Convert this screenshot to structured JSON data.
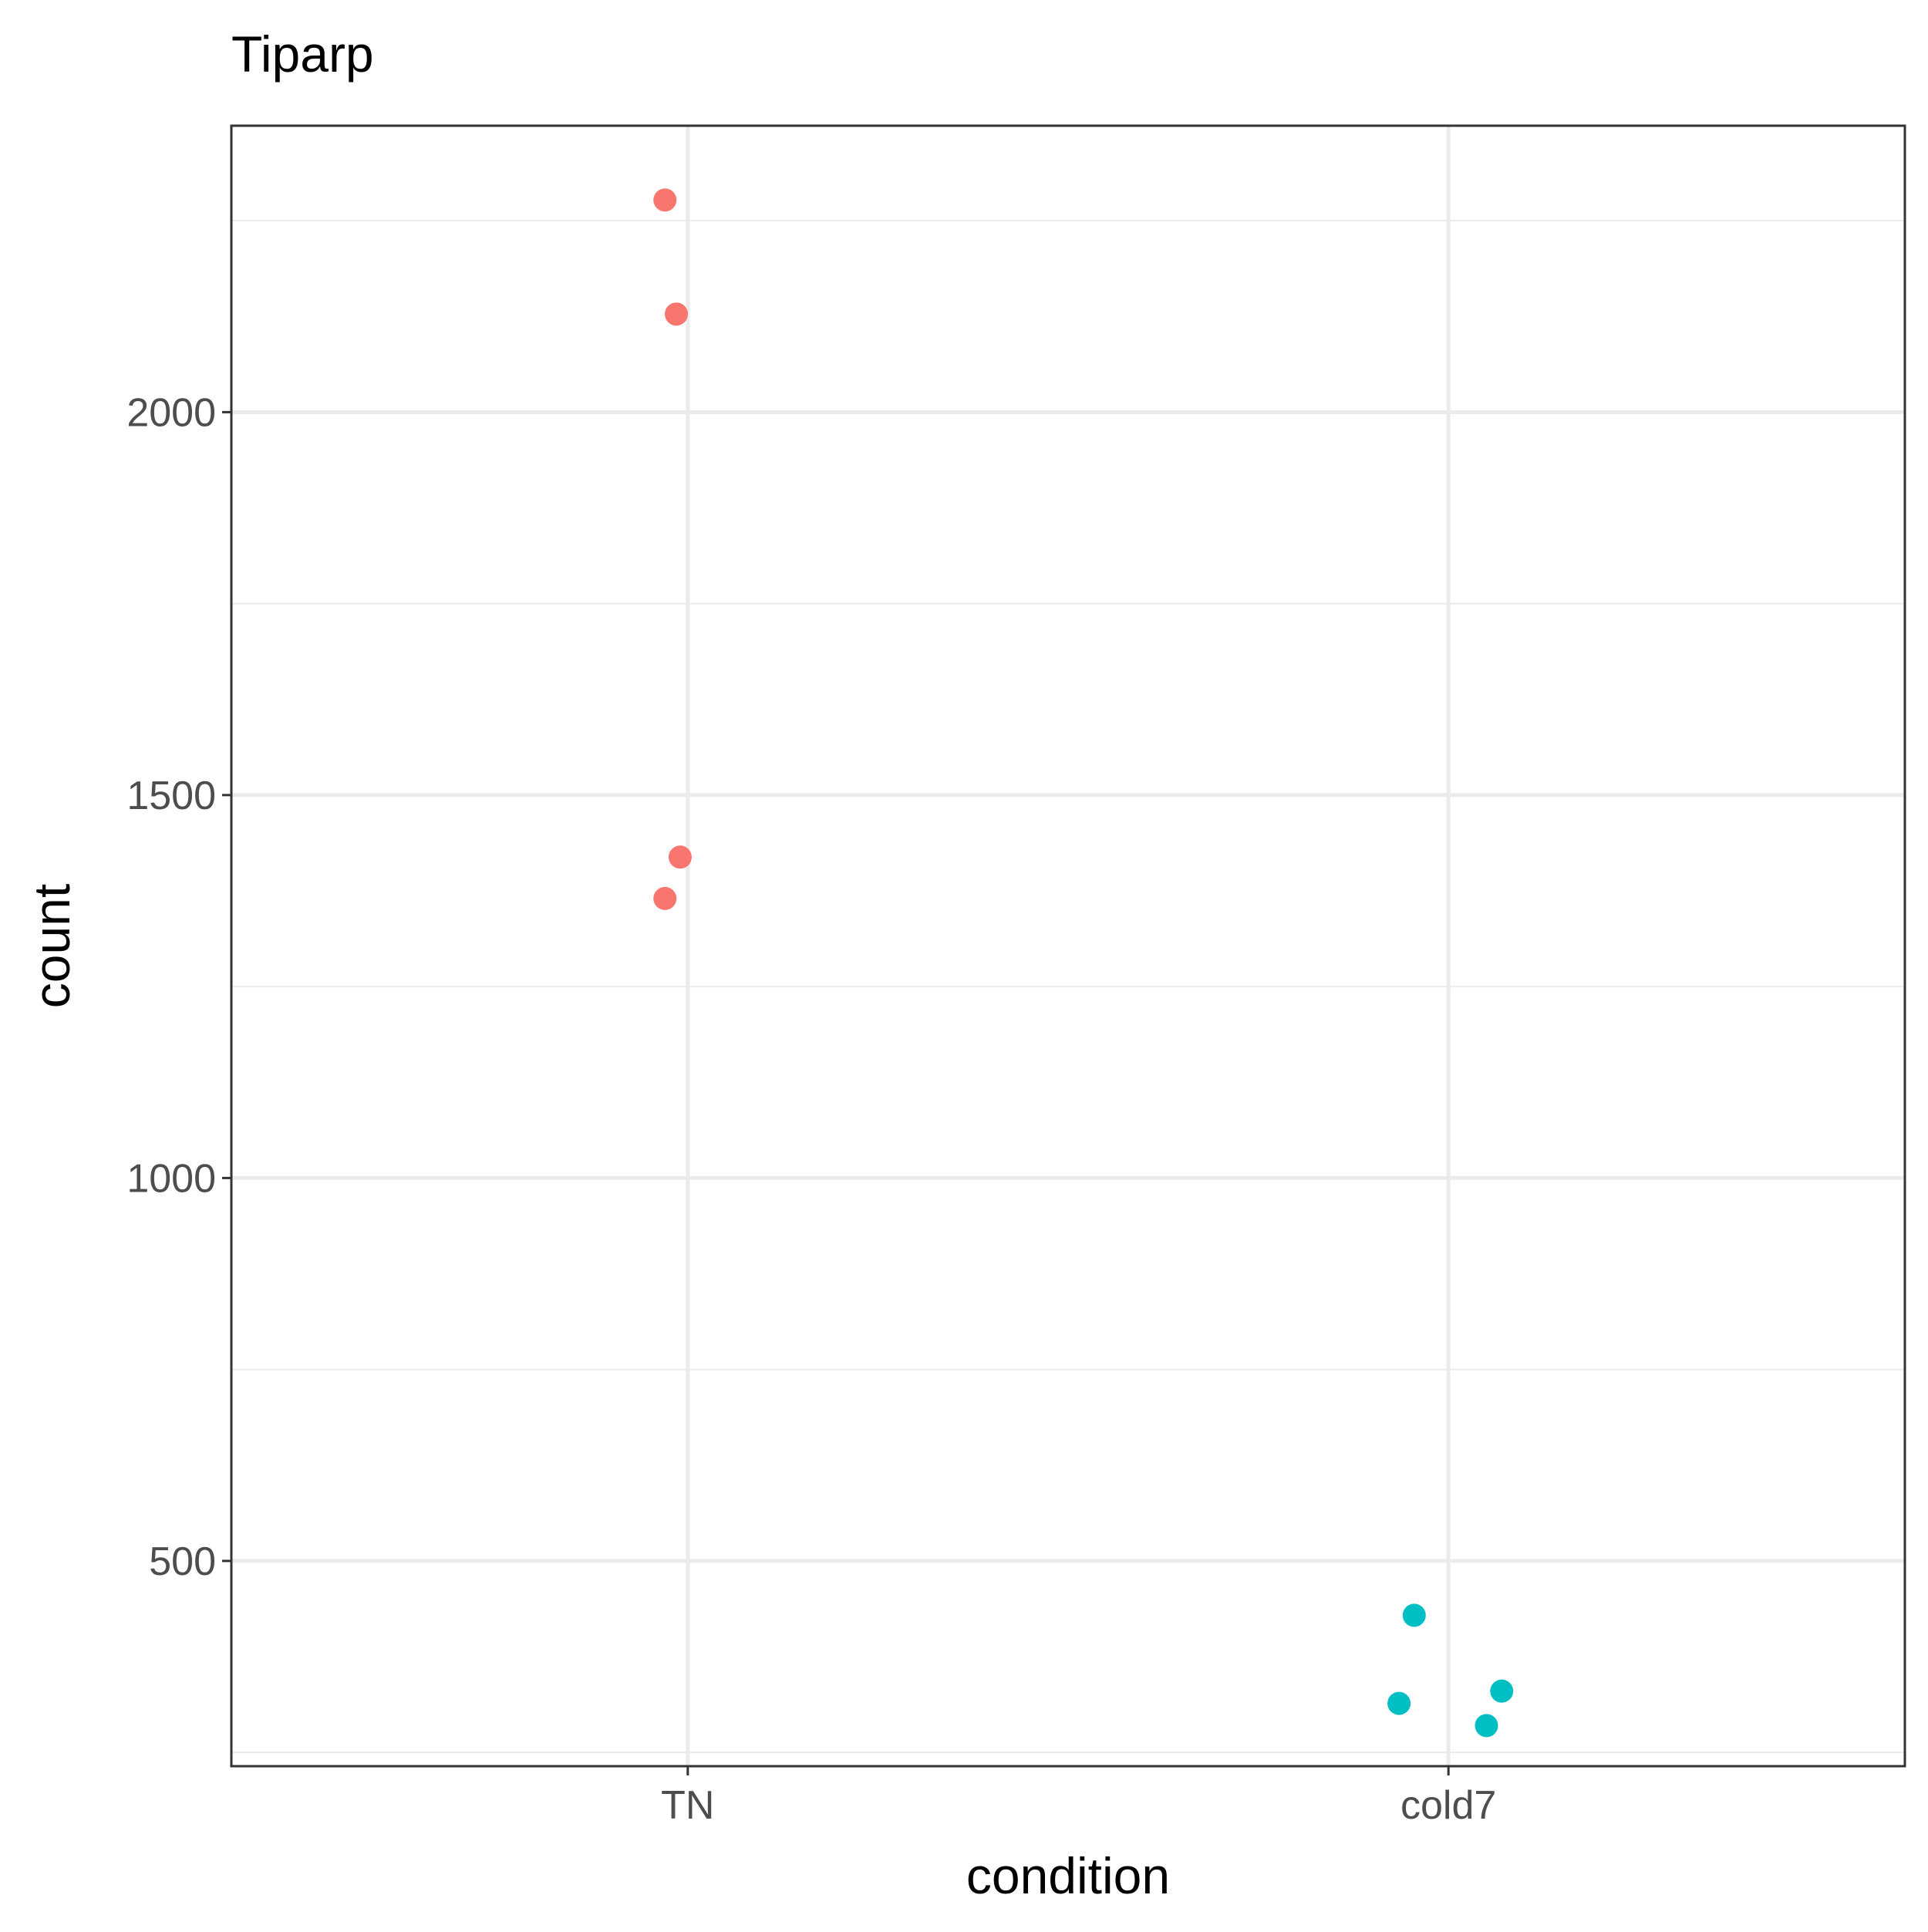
{
  "chart_data": {
    "type": "scatter",
    "title": "Tiparp",
    "xlabel": "condition",
    "ylabel": "count",
    "categories": [
      "TN",
      "cold7"
    ],
    "ylim": [
      232,
      2374
    ],
    "y_ticks": [
      500,
      1000,
      1500,
      2000
    ],
    "y_tick_labels": [
      "500",
      "1000",
      "1500",
      "2000"
    ],
    "grid": true,
    "legend": "none",
    "series": [
      {
        "category": "TN",
        "color": "#F8766D",
        "points": [
          {
            "x": "TN",
            "jitter": -0.03,
            "y": 2277
          },
          {
            "x": "TN",
            "jitter": -0.015,
            "y": 2128
          },
          {
            "x": "TN",
            "jitter": -0.01,
            "y": 1419
          },
          {
            "x": "TN",
            "jitter": -0.03,
            "y": 1365
          }
        ]
      },
      {
        "category": "cold7",
        "color": "#00BFC4",
        "points": [
          {
            "x": "cold7",
            "jitter": -0.045,
            "y": 429
          },
          {
            "x": "cold7",
            "jitter": -0.065,
            "y": 314
          },
          {
            "x": "cold7",
            "jitter": 0.07,
            "y": 330
          },
          {
            "x": "cold7",
            "jitter": 0.05,
            "y": 285
          }
        ]
      }
    ]
  }
}
